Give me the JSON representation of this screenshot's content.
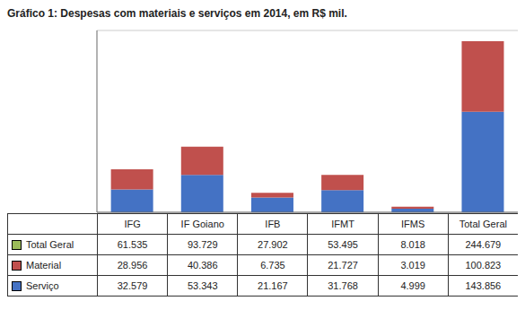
{
  "chart_data": {
    "type": "bar",
    "title": "Gráfico 1: Despesas com materiais e serviços em 2014, em R$ mil.",
    "categories": [
      "IFG",
      "IF Goiano",
      "IFB",
      "IFMT",
      "IFMS",
      "Total Geral"
    ],
    "series": [
      {
        "name": "Serviço",
        "color": "#4472C4",
        "values": [
          32.579,
          53.343,
          21.167,
          31.768,
          4.999,
          143.856
        ]
      },
      {
        "name": "Material",
        "color": "#C0504D",
        "values": [
          28.956,
          40.386,
          6.735,
          21.727,
          3.019,
          100.823
        ]
      },
      {
        "name": "Total Geral",
        "color": "#9BBB59",
        "values": [
          0,
          0,
          0,
          0,
          0,
          0
        ],
        "table_values": [
          61.535,
          93.729,
          27.902,
          53.495,
          8.018,
          244.679
        ]
      }
    ],
    "stacked": true,
    "ylim": [
      0,
      260
    ],
    "yticks": [
      0,
      50,
      100,
      150,
      200,
      250
    ],
    "grid": true,
    "tick_labels": false
  }
}
